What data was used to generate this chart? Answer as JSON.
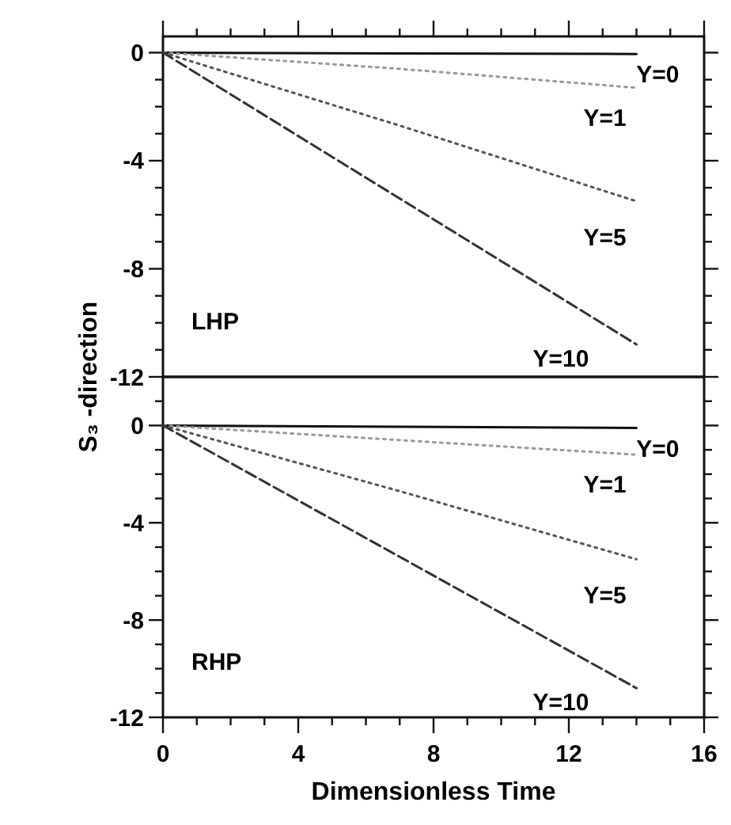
{
  "chart_data": [
    {
      "type": "line",
      "ylabel": "S₃ -direction",
      "annotations": [
        "LHP"
      ],
      "xlim": [
        0,
        16
      ],
      "xticks": [
        0,
        {
          "value": 1,
          "label": null
        },
        {
          "value": 2,
          "label": null
        },
        {
          "value": 3,
          "label": null
        },
        4,
        {
          "value": 5,
          "label": null
        },
        {
          "value": 6,
          "label": null
        },
        {
          "value": 7,
          "label": null
        },
        8,
        {
          "value": 9,
          "label": null
        },
        {
          "value": 10,
          "label": null
        },
        {
          "value": 11,
          "label": null
        },
        12,
        {
          "value": 13,
          "label": null
        },
        {
          "value": 14,
          "label": null
        },
        {
          "value": 15,
          "label": null
        },
        16
      ],
      "ylim": [
        -12,
        0.6
      ],
      "yticks": [
        0,
        {
          "value": -1,
          "label": null
        },
        {
          "value": -2,
          "label": null
        },
        {
          "value": -3,
          "label": null
        },
        -4,
        {
          "value": -5,
          "label": null
        },
        {
          "value": -6,
          "label": null
        },
        {
          "value": -7,
          "label": null
        },
        -8,
        {
          "value": -9,
          "label": null
        },
        {
          "value": -10,
          "label": null
        },
        {
          "value": -11,
          "label": null
        },
        -12
      ],
      "tick_labels": "y",
      "x": [
        0,
        7,
        14
      ],
      "series": [
        {
          "name": "Y=0",
          "color": "#111111",
          "line_style": "solid",
          "values": [
            0,
            -0.03,
            -0.05
          ]
        },
        {
          "name": "Y=1",
          "color": "#999999",
          "line_style": "dotted",
          "values": [
            0,
            -0.6,
            -1.3
          ]
        },
        {
          "name": "Y=5",
          "color": "#555555",
          "line_style": "dotted",
          "values": [
            0,
            -2.7,
            -5.5
          ]
        },
        {
          "name": "Y=10",
          "color": "#333333",
          "line_style": "dashed",
          "values": [
            0,
            -5.4,
            -10.8
          ]
        }
      ]
    },
    {
      "type": "line",
      "xlabel": "Dimensionless Time",
      "annotations": [
        "RHP"
      ],
      "xlim": [
        0,
        16
      ],
      "xticks": [
        0,
        {
          "value": 1,
          "label": null
        },
        {
          "value": 2,
          "label": null
        },
        {
          "value": 3,
          "label": null
        },
        4,
        {
          "value": 5,
          "label": null
        },
        {
          "value": 6,
          "label": null
        },
        {
          "value": 7,
          "label": null
        },
        8,
        {
          "value": 9,
          "label": null
        },
        {
          "value": 10,
          "label": null
        },
        {
          "value": 11,
          "label": null
        },
        12,
        {
          "value": 13,
          "label": null
        },
        {
          "value": 14,
          "label": null
        },
        {
          "value": 15,
          "label": null
        },
        16
      ],
      "ylim": [
        -12,
        2
      ],
      "yticks": [
        {
          "value": 1,
          "label": null
        },
        0,
        {
          "value": -1,
          "label": null
        },
        {
          "value": -2,
          "label": null
        },
        {
          "value": -3,
          "label": null
        },
        -4,
        {
          "value": -5,
          "label": null
        },
        {
          "value": -6,
          "label": null
        },
        {
          "value": -7,
          "label": null
        },
        -8,
        {
          "value": -9,
          "label": null
        },
        {
          "value": -10,
          "label": null
        },
        {
          "value": -11,
          "label": null
        },
        -12
      ],
      "x": [
        0,
        7,
        14
      ],
      "series": [
        {
          "name": "Y=0",
          "color": "#111111",
          "line_style": "solid",
          "values": [
            0,
            -0.05,
            -0.1
          ]
        },
        {
          "name": "Y=1",
          "color": "#999999",
          "line_style": "dotted",
          "values": [
            0,
            -0.6,
            -1.2
          ]
        },
        {
          "name": "Y=5",
          "color": "#555555",
          "line_style": "dotted",
          "values": [
            0,
            -2.7,
            -5.5
          ]
        },
        {
          "name": "Y=10",
          "color": "#333333",
          "line_style": "dashed",
          "values": [
            0,
            -5.4,
            -10.8
          ]
        }
      ]
    }
  ]
}
